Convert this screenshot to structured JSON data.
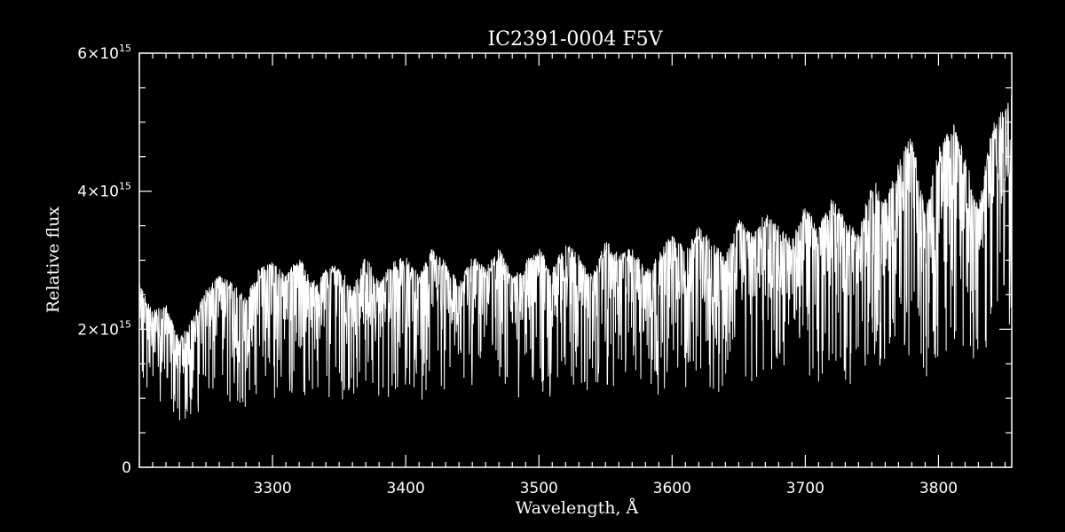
{
  "chart_data": {
    "type": "line",
    "title": "IC2391-0004   F5V",
    "xlabel": "Wavelength, Å",
    "ylabel": "Relative flux",
    "xlim": [
      3200,
      3855
    ],
    "ylim": [
      0,
      6000000000000000.0
    ],
    "x_ticks": [
      {
        "value": 3300,
        "label": "3300"
      },
      {
        "value": 3400,
        "label": "3400"
      },
      {
        "value": 3500,
        "label": "3500"
      },
      {
        "value": 3600,
        "label": "3600"
      },
      {
        "value": 3700,
        "label": "3700"
      },
      {
        "value": 3800,
        "label": "3800"
      }
    ],
    "y_ticks": [
      {
        "value": 0,
        "mantissa": "0",
        "exponent": ""
      },
      {
        "value": 2000000000000000.0,
        "mantissa": "2×10",
        "exponent": "15"
      },
      {
        "value": 4000000000000000.0,
        "mantissa": "4×10",
        "exponent": "15"
      },
      {
        "value": 6000000000000000.0,
        "mantissa": "6×10",
        "exponent": "15"
      }
    ],
    "grid": false,
    "legend": "none",
    "colors": {
      "background": "#000000",
      "line": "#ffffff"
    },
    "series": [
      {
        "values_note_free": true,
        "x": [
          3200,
          3210,
          3220,
          3230,
          3240,
          3250,
          3260,
          3270,
          3280,
          3290,
          3300,
          3310,
          3320,
          3330,
          3340,
          3350,
          3360,
          3370,
          3380,
          3390,
          3400,
          3410,
          3420,
          3430,
          3440,
          3450,
          3460,
          3470,
          3480,
          3490,
          3500,
          3510,
          3520,
          3530,
          3540,
          3550,
          3560,
          3570,
          3580,
          3590,
          3600,
          3610,
          3620,
          3630,
          3640,
          3650,
          3660,
          3670,
          3680,
          3690,
          3700,
          3710,
          3720,
          3730,
          3740,
          3750,
          3760,
          3770,
          3780,
          3790,
          3800,
          3810,
          3820,
          3830,
          3840,
          3850,
          3855
        ],
        "y": [
          2600000000000000.0,
          2200000000000000.0,
          2300000000000000.0,
          1800000000000000.0,
          2100000000000000.0,
          2500000000000000.0,
          2700000000000000.0,
          2600000000000000.0,
          2400000000000000.0,
          2800000000000000.0,
          2900000000000000.0,
          2700000000000000.0,
          3000000000000000.0,
          2600000000000000.0,
          2800000000000000.0,
          2900000000000000.0,
          2500000000000000.0,
          3000000000000000.0,
          2600000000000000.0,
          2900000000000000.0,
          3000000000000000.0,
          2700000000000000.0,
          3100000000000000.0,
          2900000000000000.0,
          2600000000000000.0,
          3000000000000000.0,
          2800000000000000.0,
          3100000000000000.0,
          2700000000000000.0,
          2900000000000000.0,
          3100000000000000.0,
          2800000000000000.0,
          3200000000000000.0,
          3000000000000000.0,
          2700000000000000.0,
          3200000000000000.0,
          3000000000000000.0,
          3100000000000000.0,
          2800000000000000.0,
          3000000000000000.0,
          3300000000000000.0,
          3100000000000000.0,
          3400000000000000.0,
          3200000000000000.0,
          3000000000000000.0,
          3500000000000000.0,
          3300000000000000.0,
          3600000000000000.0,
          3400000000000000.0,
          3200000000000000.0,
          3700000000000000.0,
          3400000000000000.0,
          3800000000000000.0,
          3500000000000000.0,
          3300000000000000.0,
          4100000000000000.0,
          3800000000000000.0,
          4300000000000000.0,
          4700000000000000.0,
          3600000000000000.0,
          4500000000000000.0,
          4900000000000000.0,
          4400000000000000.0,
          3700000000000000.0,
          4800000000000000.0,
          5100000000000000.0,
          5400000000000000.0
        ]
      }
    ]
  }
}
